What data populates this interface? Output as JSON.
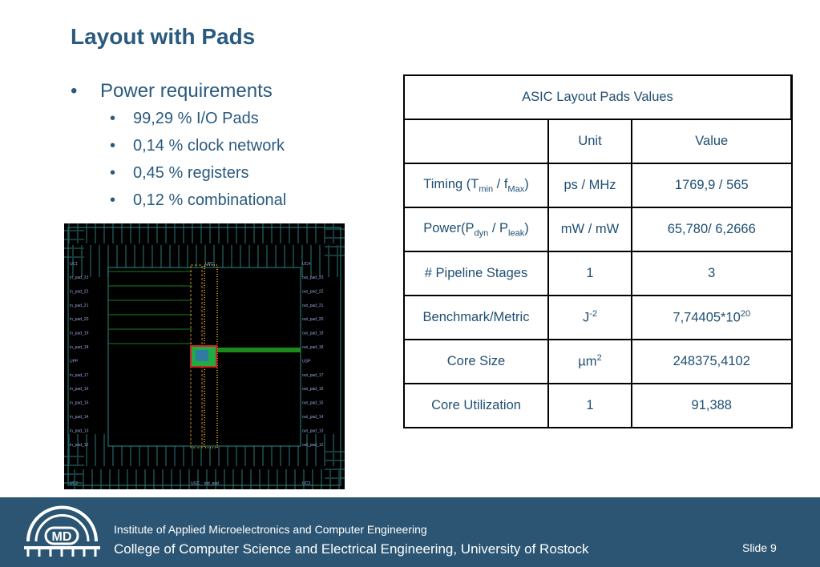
{
  "title": "Layout with Pads",
  "bullets": {
    "main": "Power requirements",
    "sub": [
      "99,29 % I/O Pads",
      "0,14 % clock network",
      "0,45 % registers",
      "0,12 % combinational"
    ]
  },
  "table": {
    "caption": "ASIC Layout Pads Values",
    "header": [
      "Unit",
      "Value"
    ],
    "rows": [
      [
        [
          {
            "text": "Timing (T"
          },
          {
            "text": "min",
            "style": "sub"
          },
          {
            "text": " / f"
          },
          {
            "text": "Max",
            "style": "sub"
          },
          {
            "text": ")"
          }
        ],
        [
          {
            "text": "ps / MHz"
          }
        ],
        [
          {
            "text": "1769,9 / 565"
          }
        ]
      ],
      [
        [
          {
            "text": "Power(P"
          },
          {
            "text": "dyn",
            "style": "sub"
          },
          {
            "text": " / P"
          },
          {
            "text": "leak",
            "style": "sub"
          },
          {
            "text": ")"
          }
        ],
        [
          {
            "text": "mW / mW"
          }
        ],
        [
          {
            "text": "65,780/ 6,2666"
          }
        ]
      ],
      [
        [
          {
            "text": "# Pipeline Stages"
          }
        ],
        [
          {
            "text": "1"
          }
        ],
        [
          {
            "text": "3"
          }
        ]
      ],
      [
        [
          {
            "text": "Benchmark/Metric"
          }
        ],
        [
          {
            "text": "J"
          },
          {
            "text": "-2",
            "style": "sup"
          }
        ],
        [
          {
            "text": "7,74405*10"
          },
          {
            "text": "20",
            "style": "sup"
          }
        ]
      ],
      [
        [
          {
            "text": "Core Size"
          }
        ],
        [
          {
            "text": "µm"
          },
          {
            "text": "2",
            "style": "sup"
          }
        ],
        [
          {
            "text": "248375,4102"
          }
        ]
      ],
      [
        [
          {
            "text": "Core Utilization"
          }
        ],
        [
          {
            "text": "1"
          }
        ],
        [
          {
            "text": "91,388"
          }
        ]
      ]
    ]
  },
  "chip": {
    "corners": [
      "UC1",
      "UC4",
      "UC2",
      "UC3"
    ],
    "top": "UPC",
    "bottom": [
      "UGC",
      "ind_pad"
    ],
    "left": [
      "in_pad_23",
      "in_pad_22",
      "in_pad_21",
      "in_pad_20",
      "in_pad_19",
      "in_pad_18",
      "UPP",
      "in_pad_17",
      "in_pad_16",
      "in_pad_15",
      "in_pad_14",
      "in_pad_13",
      "in_pad_12"
    ],
    "right": [
      "out_pad_23",
      "out_pad_22",
      "out_pad_21",
      "out_pad_20",
      "out_pad_19",
      "out_pad_18",
      "USP",
      "out_pad_17",
      "out_pad_16",
      "out_pad_15",
      "out_pad_14",
      "out_pad_13",
      "out_pad_12"
    ]
  },
  "footer": {
    "logo": "MD",
    "line1": "Institute of Applied Microelectronics and Computer Engineering",
    "line2": "College of Computer Science and Electrical Engineering, University of Rostock",
    "slide": "Slide 9"
  }
}
